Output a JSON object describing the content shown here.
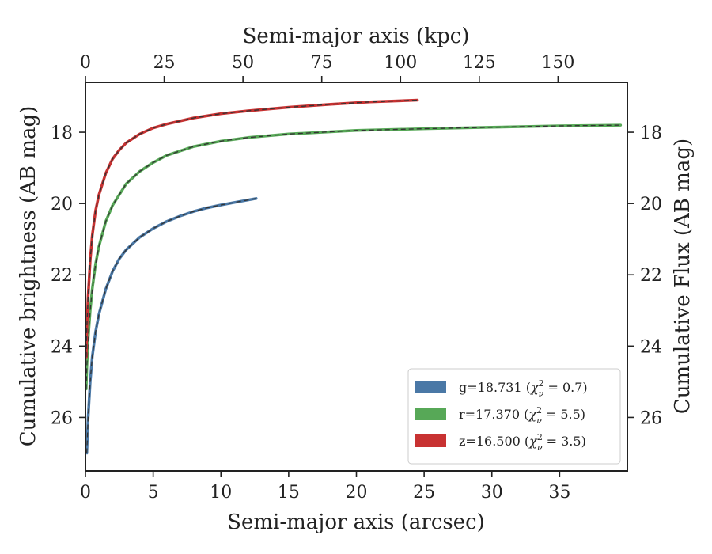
{
  "chart_data": {
    "type": "line",
    "xlabel": "Semi-major axis (arcsec)",
    "ylabel": "Cumulative brightness (AB mag)",
    "x2label": "Semi-major axis (kpc)",
    "y2label": "Cumulative Flux (AB mag)",
    "xlim": [
      0,
      40
    ],
    "ylim": [
      27.5,
      16.6
    ],
    "x2lim": [
      0,
      172
    ],
    "y_inverted": true,
    "x_ticks": [
      0,
      5,
      10,
      15,
      20,
      25,
      30,
      35
    ],
    "y_ticks": [
      18,
      20,
      22,
      24,
      26
    ],
    "x2_ticks": [
      0,
      25,
      50,
      75,
      100,
      125,
      150
    ],
    "grid": false,
    "legend_position": "lower-right",
    "series": [
      {
        "name": "g=18.731 (χ²ᵥ = 0.7)",
        "label_main": "g=18.731 (",
        "label_sym": "χ",
        "label_sup": "2",
        "label_sub": "ν",
        "label_rest": " = 0.7)",
        "color": "#4a78a6",
        "x": [
          0.1,
          0.2,
          0.35,
          0.5,
          0.75,
          1.0,
          1.5,
          2.0,
          2.5,
          3.0,
          4.0,
          5.0,
          6.0,
          7.0,
          8.0,
          9.0,
          10.0,
          11.0,
          12.0,
          12.6
        ],
        "y": [
          27.0,
          26.0,
          25.0,
          24.3,
          23.6,
          23.1,
          22.4,
          21.9,
          21.55,
          21.3,
          20.95,
          20.7,
          20.5,
          20.35,
          20.22,
          20.12,
          20.04,
          19.97,
          19.9,
          19.86
        ]
      },
      {
        "name": "r=17.370 (χ²ᵥ = 5.5)",
        "label_main": "r=17.370 (",
        "label_sym": "χ",
        "label_sup": "2",
        "label_sub": "ν",
        "label_rest": " = 5.5)",
        "color": "#57a857",
        "x": [
          0.05,
          0.1,
          0.2,
          0.35,
          0.5,
          0.75,
          1.0,
          1.5,
          2.0,
          3.0,
          4.0,
          5.0,
          6.0,
          8.0,
          10.0,
          12.0,
          15.0,
          20.0,
          25.0,
          30.0,
          35.0,
          39.5
        ],
        "y": [
          25.2,
          24.6,
          23.8,
          23.0,
          22.4,
          21.7,
          21.2,
          20.5,
          20.05,
          19.45,
          19.1,
          18.85,
          18.65,
          18.4,
          18.25,
          18.15,
          18.05,
          17.95,
          17.9,
          17.86,
          17.82,
          17.8
        ],
        "dashed": true
      },
      {
        "name": "z=16.500 (χ²ᵥ = 3.5)",
        "label_main": "z=16.500 (",
        "label_sym": "χ",
        "label_sup": "2",
        "label_sub": "ν",
        "label_rest": " = 3.5)",
        "color": "#c83232",
        "x": [
          0.05,
          0.1,
          0.2,
          0.35,
          0.5,
          0.75,
          1.0,
          1.5,
          2.0,
          2.5,
          3.0,
          4.0,
          5.0,
          6.0,
          8.0,
          10.0,
          12.0,
          15.0,
          18.0,
          21.0,
          24.5
        ],
        "y": [
          24.3,
          23.5,
          22.6,
          21.6,
          20.9,
          20.2,
          19.75,
          19.15,
          18.75,
          18.5,
          18.3,
          18.05,
          17.88,
          17.77,
          17.6,
          17.48,
          17.4,
          17.3,
          17.22,
          17.15,
          17.1
        ]
      }
    ]
  }
}
